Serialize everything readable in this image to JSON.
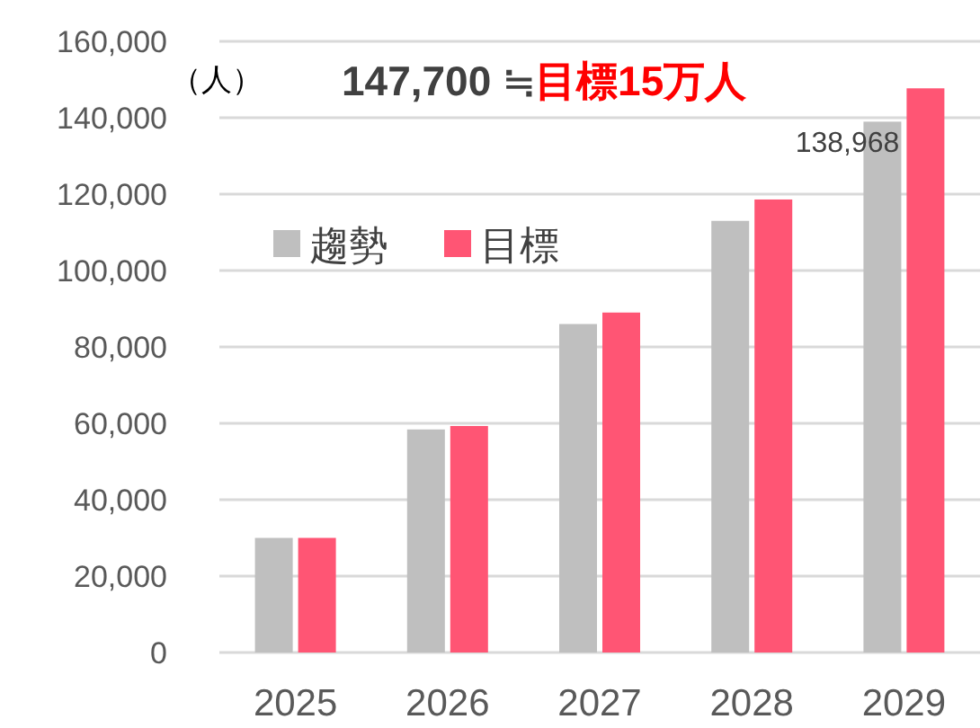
{
  "chart_data": {
    "type": "bar",
    "title": "147,700 ≒",
    "subtitle": "目標15万人",
    "ylabel": "（人）",
    "categories": [
      "2025",
      "2026",
      "2027",
      "2028",
      "2029"
    ],
    "series": [
      {
        "name": "趨勢",
        "color": "#bfbfbf",
        "values": [
          30000,
          58400,
          86000,
          113000,
          138968
        ],
        "value_labels": [
          null,
          null,
          null,
          null,
          "138,968"
        ]
      },
      {
        "name": "目標",
        "color": "#ff5574",
        "values": [
          30000,
          59300,
          89000,
          118600,
          147700
        ]
      }
    ],
    "ylim": [
      0,
      160000
    ],
    "yticks": [
      0,
      {
        "value": 20000,
        "label": "20,000"
      },
      {
        "value": 40000,
        "label": "40,000"
      },
      {
        "value": 60000,
        "label": "60,000"
      },
      {
        "value": 80000,
        "label": "80,000"
      },
      {
        "value": 100000,
        "label": "100,000"
      },
      {
        "value": 120000,
        "label": "120,000"
      },
      {
        "value": 140000,
        "label": "140,000"
      },
      {
        "value": 160000,
        "label": "160,000"
      }
    ],
    "grid": "y",
    "legend": "top left"
  }
}
